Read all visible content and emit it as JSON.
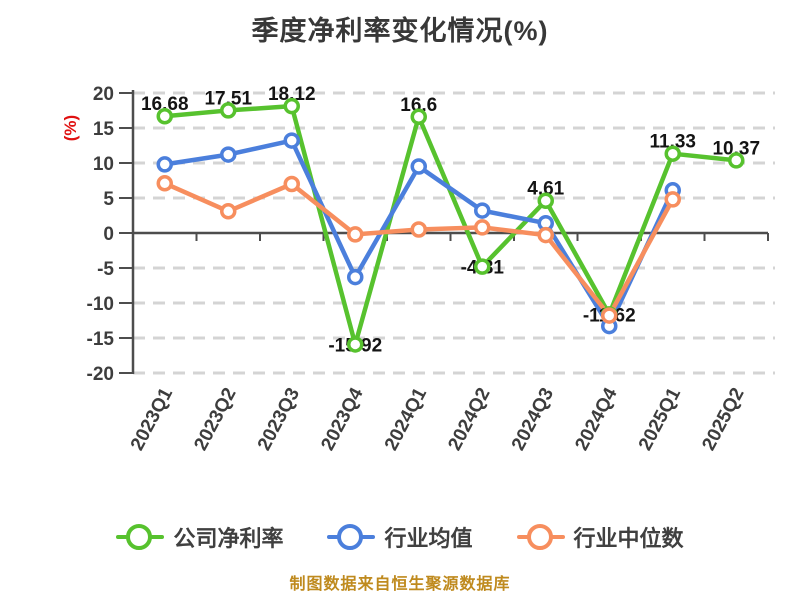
{
  "title": "季度净利率变化情况(%)",
  "footer": "制图数据来自恒生聚源数据库",
  "colors": {
    "title_text": "#383838",
    "axis_line": "#4d4d4d",
    "axis_text": "#3d3d3d",
    "grid_line": "#d4d4d4",
    "data_label_text": "#141414",
    "y_unit_red": "#e01111",
    "footer_gold": "#bf8a1e",
    "series_green": "#57c22e",
    "series_blue": "#4b7fdc",
    "series_orange": "#f78e5e"
  },
  "chart_data": {
    "type": "line",
    "title": "季度净利率变化情况(%)",
    "xlabel": "",
    "ylabel": "(%)",
    "ylim": [
      -20,
      20
    ],
    "y_ticks": [
      20,
      15,
      10,
      5,
      0,
      -5,
      -10,
      -15,
      -20
    ],
    "grid": "horizontal-dashed",
    "legend_position": "bottom",
    "categories": [
      "2023Q1",
      "2023Q2",
      "2023Q3",
      "2023Q4",
      "2024Q1",
      "2024Q2",
      "2024Q3",
      "2024Q4",
      "2025Q1",
      "2025Q2"
    ],
    "series": [
      {
        "name": "公司净利率",
        "color": "#57c22e",
        "show_labels": true,
        "values": [
          16.68,
          17.51,
          18.12,
          -15.92,
          16.6,
          -4.81,
          4.61,
          -11.62,
          11.33,
          10.37
        ],
        "labels": [
          "16.68",
          "17.51",
          "18.12",
          "-15.92",
          "16.6",
          "-4.81",
          "4.61",
          "-11.62",
          "11.33",
          "10.37"
        ]
      },
      {
        "name": "行业均值",
        "color": "#4b7fdc",
        "show_labels": false,
        "values": [
          9.8,
          11.2,
          13.2,
          -6.3,
          9.5,
          3.2,
          1.4,
          -13.3,
          6.1,
          null
        ],
        "labels": []
      },
      {
        "name": "行业中位数",
        "color": "#f78e5e",
        "show_labels": false,
        "values": [
          7.1,
          3.1,
          7.0,
          -0.2,
          0.5,
          0.8,
          -0.3,
          -11.8,
          4.8,
          null
        ],
        "labels": []
      }
    ]
  }
}
